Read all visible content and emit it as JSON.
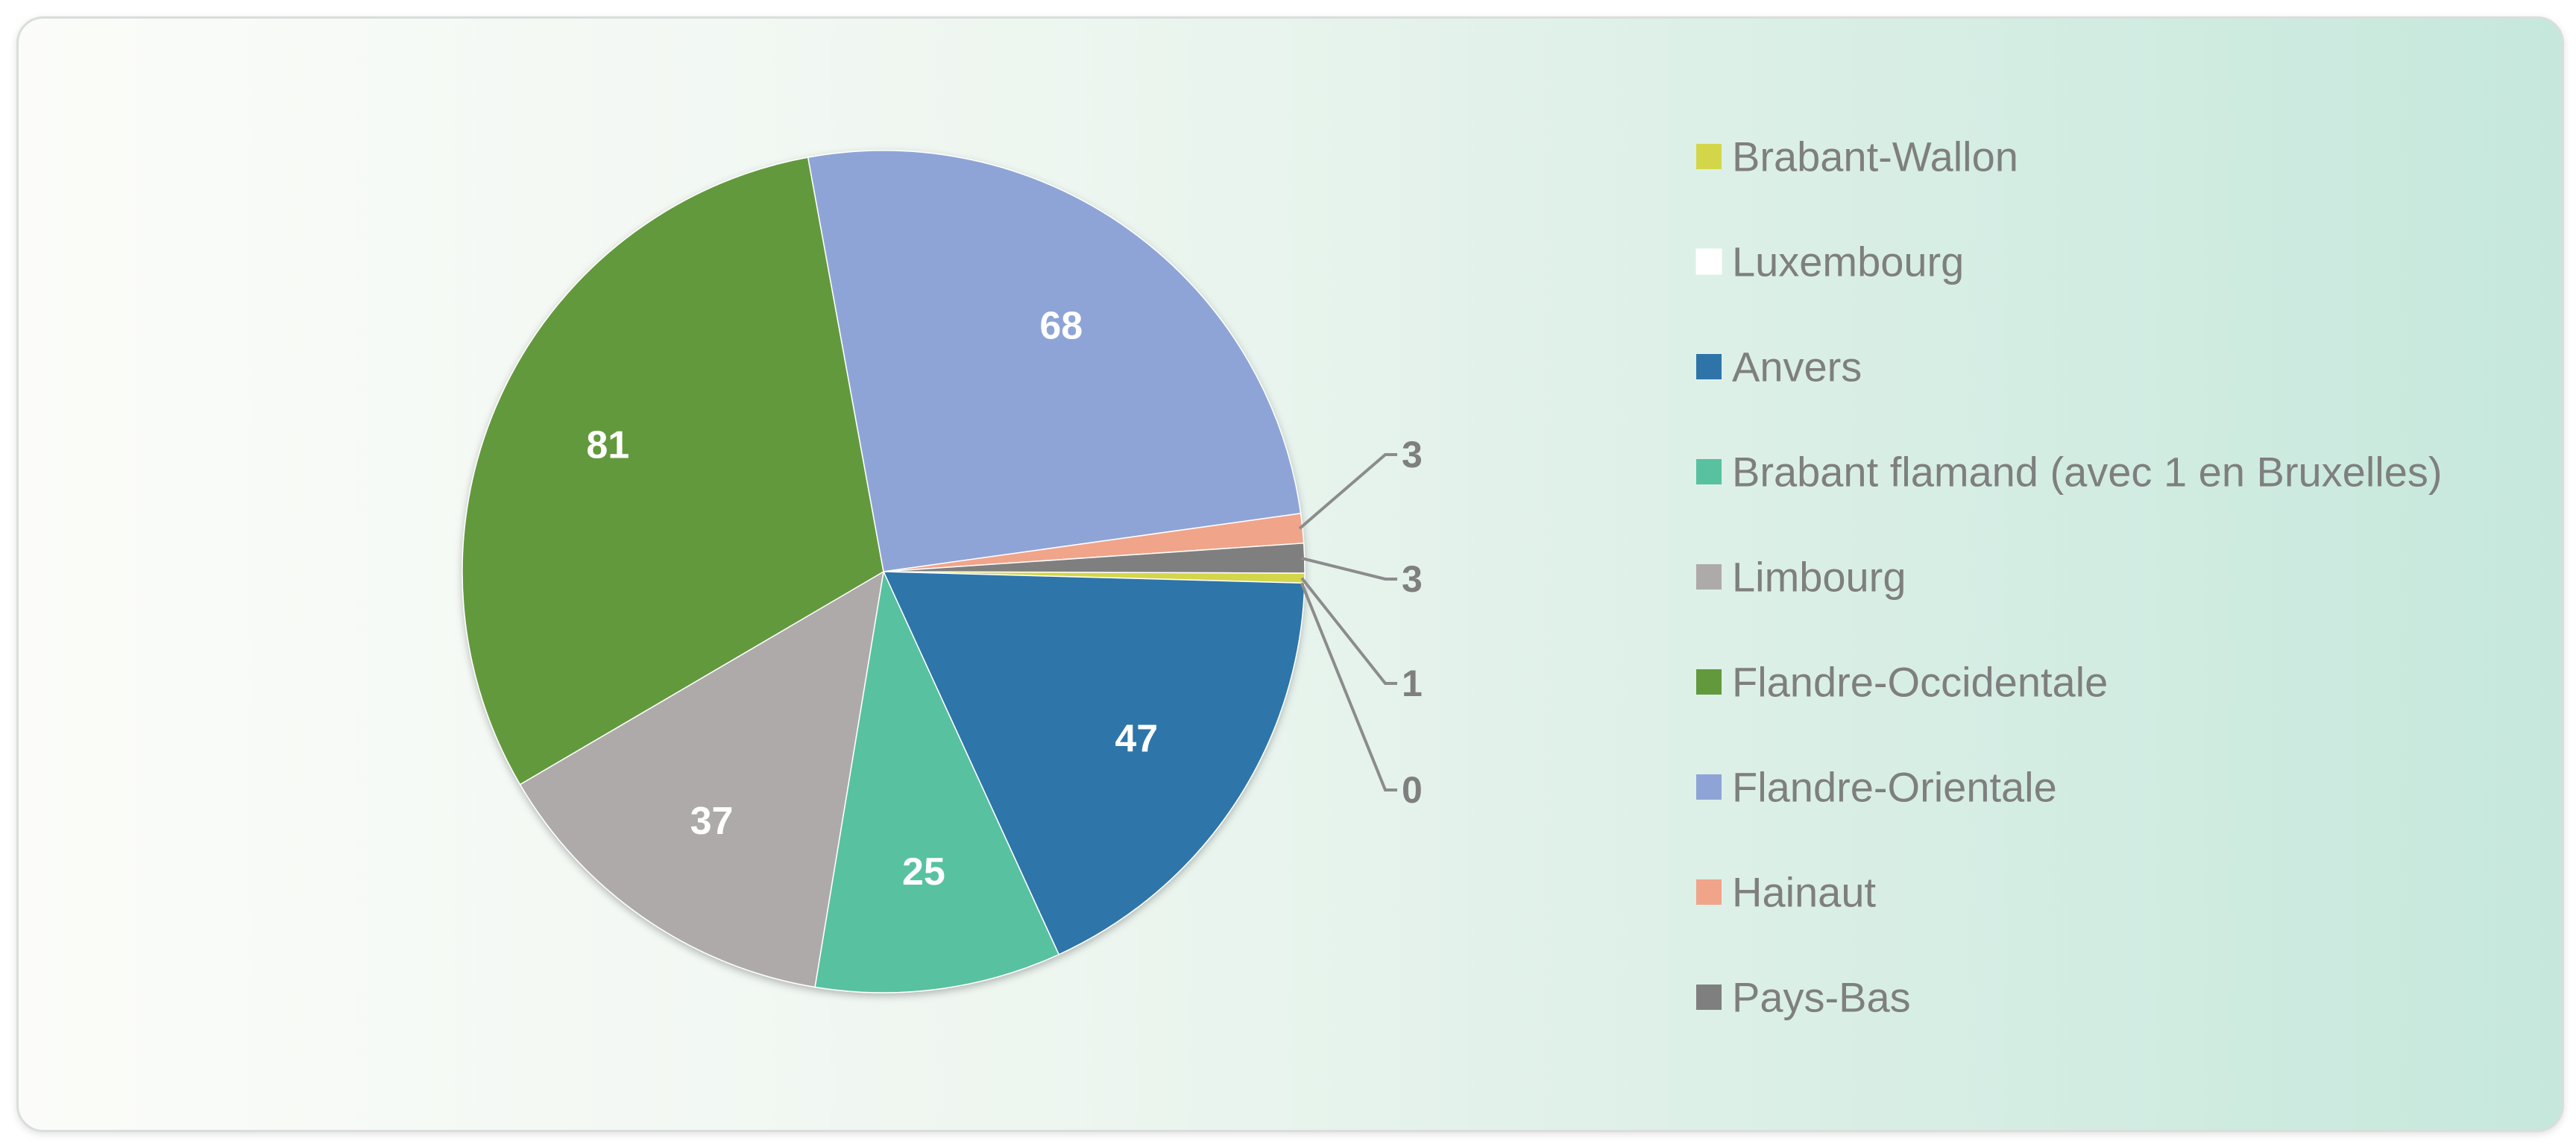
{
  "chart_data": {
    "type": "pie",
    "title": "",
    "legend_position": "right",
    "slices": [
      {
        "label": "Brabant-Wallon",
        "value": 1,
        "color": "#d4d64a",
        "label_placement": "outside"
      },
      {
        "label": "Luxembourg",
        "value": 0,
        "color": "#ffffff",
        "label_placement": "outside"
      },
      {
        "label": "Anvers",
        "value": 47,
        "color": "#2e74a9",
        "label_placement": "inside"
      },
      {
        "label": "Brabant flamand (avec 1 en Bruxelles)",
        "value": 25,
        "color": "#58c1a0",
        "label_placement": "inside"
      },
      {
        "label": "Limbourg",
        "value": 37,
        "color": "#aeaaaa",
        "label_placement": "inside"
      },
      {
        "label": "Flandre-Occidentale",
        "value": 81,
        "color": "#63993d",
        "label_placement": "inside"
      },
      {
        "label": "Flandre-Orientale",
        "value": 68,
        "color": "#8fa4d6",
        "label_placement": "inside"
      },
      {
        "label": "Hainaut",
        "value": 3,
        "color": "#f0a48a",
        "label_placement": "outside"
      },
      {
        "label": "Pays-Bas",
        "value": 3,
        "color": "#7f7f7f",
        "label_placement": "outside"
      }
    ],
    "inside_label_color": "#ffffff",
    "outside_label_color": "#7f7f7f",
    "legend_text_color": "#7f7f7f"
  }
}
